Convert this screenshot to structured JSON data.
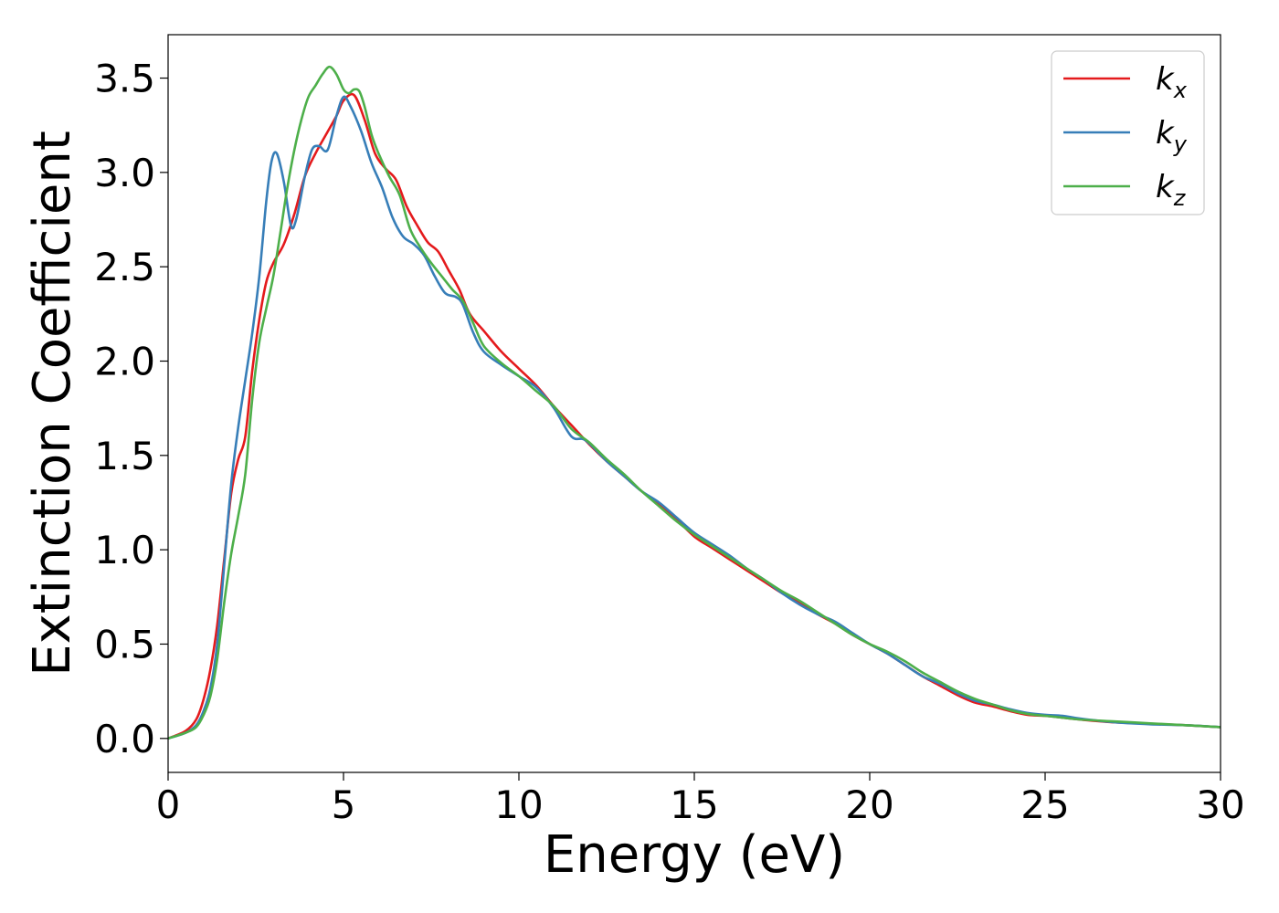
{
  "chart_data": {
    "type": "line",
    "title": "",
    "xlabel": "Energy (eV)",
    "ylabel": "Extinction Coefficient",
    "xlim": [
      0,
      30
    ],
    "ylim": [
      -0.18,
      3.73
    ],
    "x_ticks": [
      0,
      5,
      10,
      15,
      20,
      25,
      30
    ],
    "y_ticks": [
      0.0,
      0.5,
      1.0,
      1.5,
      2.0,
      2.5,
      3.0,
      3.5
    ],
    "x_tick_labels": [
      "0",
      "5",
      "10",
      "15",
      "20",
      "25",
      "30"
    ],
    "y_tick_labels": [
      "0.0",
      "0.5",
      "1.0",
      "1.5",
      "2.0",
      "2.5",
      "3.0",
      "3.5"
    ],
    "grid": false,
    "legend_position": "top-right",
    "series": [
      {
        "name": "k_x",
        "label_base": "k",
        "label_sub": "x",
        "color": "#e41a1c",
        "points": [
          [
            0,
            0.0
          ],
          [
            0.5,
            0.04
          ],
          [
            0.8,
            0.1
          ],
          [
            1.0,
            0.2
          ],
          [
            1.2,
            0.36
          ],
          [
            1.4,
            0.6
          ],
          [
            1.6,
            0.95
          ],
          [
            1.8,
            1.3
          ],
          [
            2.0,
            1.48
          ],
          [
            2.2,
            1.6
          ],
          [
            2.4,
            1.95
          ],
          [
            2.6,
            2.22
          ],
          [
            2.8,
            2.42
          ],
          [
            3.0,
            2.52
          ],
          [
            3.3,
            2.62
          ],
          [
            3.6,
            2.78
          ],
          [
            3.9,
            2.98
          ],
          [
            4.2,
            3.1
          ],
          [
            4.5,
            3.2
          ],
          [
            4.8,
            3.3
          ],
          [
            5.0,
            3.38
          ],
          [
            5.3,
            3.41
          ],
          [
            5.6,
            3.28
          ],
          [
            5.9,
            3.1
          ],
          [
            6.2,
            3.02
          ],
          [
            6.5,
            2.96
          ],
          [
            6.8,
            2.82
          ],
          [
            7.1,
            2.72
          ],
          [
            7.4,
            2.63
          ],
          [
            7.7,
            2.58
          ],
          [
            8.0,
            2.48
          ],
          [
            8.3,
            2.38
          ],
          [
            8.6,
            2.25
          ],
          [
            9.0,
            2.16
          ],
          [
            9.5,
            2.05
          ],
          [
            10.0,
            1.96
          ],
          [
            10.5,
            1.87
          ],
          [
            11.0,
            1.76
          ],
          [
            11.5,
            1.66
          ],
          [
            12.0,
            1.56
          ],
          [
            12.5,
            1.47
          ],
          [
            13.0,
            1.39
          ],
          [
            13.5,
            1.31
          ],
          [
            14.0,
            1.24
          ],
          [
            14.5,
            1.16
          ],
          [
            15.0,
            1.07
          ],
          [
            15.5,
            1.01
          ],
          [
            16.0,
            0.95
          ],
          [
            16.5,
            0.89
          ],
          [
            17.0,
            0.83
          ],
          [
            17.5,
            0.77
          ],
          [
            18.0,
            0.72
          ],
          [
            18.5,
            0.66
          ],
          [
            19.0,
            0.61
          ],
          [
            19.5,
            0.55
          ],
          [
            20.0,
            0.5
          ],
          [
            20.5,
            0.45
          ],
          [
            21.0,
            0.39
          ],
          [
            21.5,
            0.33
          ],
          [
            22.0,
            0.28
          ],
          [
            22.5,
            0.23
          ],
          [
            23.0,
            0.19
          ],
          [
            23.5,
            0.17
          ],
          [
            24.0,
            0.145
          ],
          [
            24.5,
            0.125
          ],
          [
            25.0,
            0.12
          ],
          [
            25.5,
            0.11
          ],
          [
            26.0,
            0.1
          ],
          [
            27.0,
            0.085
          ],
          [
            28.0,
            0.078
          ],
          [
            29.0,
            0.07
          ],
          [
            30.0,
            0.06
          ]
        ]
      },
      {
        "name": "k_y",
        "label_base": "k",
        "label_sub": "y",
        "color": "#377eb8",
        "points": [
          [
            0,
            0.0
          ],
          [
            0.5,
            0.03
          ],
          [
            0.8,
            0.07
          ],
          [
            1.0,
            0.14
          ],
          [
            1.2,
            0.26
          ],
          [
            1.4,
            0.5
          ],
          [
            1.6,
            0.92
          ],
          [
            1.8,
            1.35
          ],
          [
            2.0,
            1.65
          ],
          [
            2.2,
            1.9
          ],
          [
            2.4,
            2.15
          ],
          [
            2.6,
            2.45
          ],
          [
            2.8,
            2.85
          ],
          [
            2.95,
            3.06
          ],
          [
            3.1,
            3.1
          ],
          [
            3.3,
            2.95
          ],
          [
            3.5,
            2.72
          ],
          [
            3.65,
            2.75
          ],
          [
            3.9,
            2.98
          ],
          [
            4.1,
            3.12
          ],
          [
            4.3,
            3.14
          ],
          [
            4.55,
            3.12
          ],
          [
            4.8,
            3.3
          ],
          [
            5.0,
            3.4
          ],
          [
            5.2,
            3.35
          ],
          [
            5.5,
            3.22
          ],
          [
            5.8,
            3.05
          ],
          [
            6.1,
            2.92
          ],
          [
            6.4,
            2.76
          ],
          [
            6.7,
            2.66
          ],
          [
            7.0,
            2.62
          ],
          [
            7.3,
            2.56
          ],
          [
            7.6,
            2.45
          ],
          [
            7.9,
            2.36
          ],
          [
            8.2,
            2.34
          ],
          [
            8.4,
            2.3
          ],
          [
            8.7,
            2.15
          ],
          [
            9.0,
            2.05
          ],
          [
            9.5,
            1.98
          ],
          [
            10.0,
            1.92
          ],
          [
            10.5,
            1.86
          ],
          [
            11.0,
            1.75
          ],
          [
            11.5,
            1.6
          ],
          [
            11.9,
            1.58
          ],
          [
            12.5,
            1.47
          ],
          [
            13.0,
            1.39
          ],
          [
            13.5,
            1.31
          ],
          [
            14.0,
            1.25
          ],
          [
            14.5,
            1.17
          ],
          [
            15.0,
            1.09
          ],
          [
            15.5,
            1.03
          ],
          [
            16.0,
            0.97
          ],
          [
            16.5,
            0.9
          ],
          [
            17.0,
            0.84
          ],
          [
            17.5,
            0.77
          ],
          [
            18.0,
            0.71
          ],
          [
            18.5,
            0.66
          ],
          [
            19.0,
            0.62
          ],
          [
            19.5,
            0.56
          ],
          [
            20.0,
            0.5
          ],
          [
            20.5,
            0.45
          ],
          [
            21.0,
            0.39
          ],
          [
            21.5,
            0.33
          ],
          [
            22.0,
            0.29
          ],
          [
            22.5,
            0.24
          ],
          [
            23.0,
            0.2
          ],
          [
            23.5,
            0.18
          ],
          [
            24.0,
            0.155
          ],
          [
            24.5,
            0.135
          ],
          [
            25.0,
            0.125
          ],
          [
            25.5,
            0.12
          ],
          [
            26.0,
            0.105
          ],
          [
            27.0,
            0.085
          ],
          [
            28.0,
            0.075
          ],
          [
            29.0,
            0.07
          ],
          [
            30.0,
            0.06
          ]
        ]
      },
      {
        "name": "k_z",
        "label_base": "k",
        "label_sub": "z",
        "color": "#4daf4a",
        "points": [
          [
            0,
            0.0
          ],
          [
            0.5,
            0.03
          ],
          [
            0.8,
            0.06
          ],
          [
            1.0,
            0.12
          ],
          [
            1.2,
            0.22
          ],
          [
            1.4,
            0.42
          ],
          [
            1.6,
            0.72
          ],
          [
            1.8,
            0.98
          ],
          [
            2.0,
            1.18
          ],
          [
            2.2,
            1.4
          ],
          [
            2.4,
            1.8
          ],
          [
            2.6,
            2.1
          ],
          [
            2.8,
            2.28
          ],
          [
            3.0,
            2.45
          ],
          [
            3.2,
            2.68
          ],
          [
            3.4,
            2.92
          ],
          [
            3.6,
            3.12
          ],
          [
            3.8,
            3.28
          ],
          [
            4.0,
            3.4
          ],
          [
            4.2,
            3.46
          ],
          [
            4.4,
            3.52
          ],
          [
            4.6,
            3.56
          ],
          [
            4.8,
            3.52
          ],
          [
            5.0,
            3.44
          ],
          [
            5.15,
            3.42
          ],
          [
            5.3,
            3.44
          ],
          [
            5.45,
            3.43
          ],
          [
            5.6,
            3.35
          ],
          [
            5.8,
            3.2
          ],
          [
            6.0,
            3.1
          ],
          [
            6.3,
            2.98
          ],
          [
            6.6,
            2.88
          ],
          [
            6.9,
            2.7
          ],
          [
            7.2,
            2.6
          ],
          [
            7.5,
            2.52
          ],
          [
            7.8,
            2.45
          ],
          [
            8.1,
            2.38
          ],
          [
            8.4,
            2.32
          ],
          [
            8.7,
            2.2
          ],
          [
            9.0,
            2.08
          ],
          [
            9.5,
            1.99
          ],
          [
            10.0,
            1.92
          ],
          [
            10.5,
            1.84
          ],
          [
            11.0,
            1.76
          ],
          [
            11.5,
            1.64
          ],
          [
            12.0,
            1.57
          ],
          [
            12.5,
            1.48
          ],
          [
            13.0,
            1.4
          ],
          [
            13.5,
            1.31
          ],
          [
            14.0,
            1.23
          ],
          [
            14.5,
            1.15
          ],
          [
            15.0,
            1.08
          ],
          [
            15.5,
            1.02
          ],
          [
            16.0,
            0.96
          ],
          [
            16.5,
            0.9
          ],
          [
            17.0,
            0.84
          ],
          [
            17.5,
            0.78
          ],
          [
            18.0,
            0.73
          ],
          [
            18.5,
            0.67
          ],
          [
            19.0,
            0.61
          ],
          [
            19.5,
            0.55
          ],
          [
            20.0,
            0.5
          ],
          [
            20.5,
            0.46
          ],
          [
            21.0,
            0.41
          ],
          [
            21.5,
            0.35
          ],
          [
            22.0,
            0.3
          ],
          [
            22.5,
            0.25
          ],
          [
            23.0,
            0.21
          ],
          [
            23.5,
            0.18
          ],
          [
            24.0,
            0.15
          ],
          [
            24.5,
            0.13
          ],
          [
            25.0,
            0.12
          ],
          [
            25.5,
            0.11
          ],
          [
            26.0,
            0.1
          ],
          [
            27.0,
            0.09
          ],
          [
            28.0,
            0.08
          ],
          [
            29.0,
            0.07
          ],
          [
            30.0,
            0.06
          ]
        ]
      }
    ]
  }
}
